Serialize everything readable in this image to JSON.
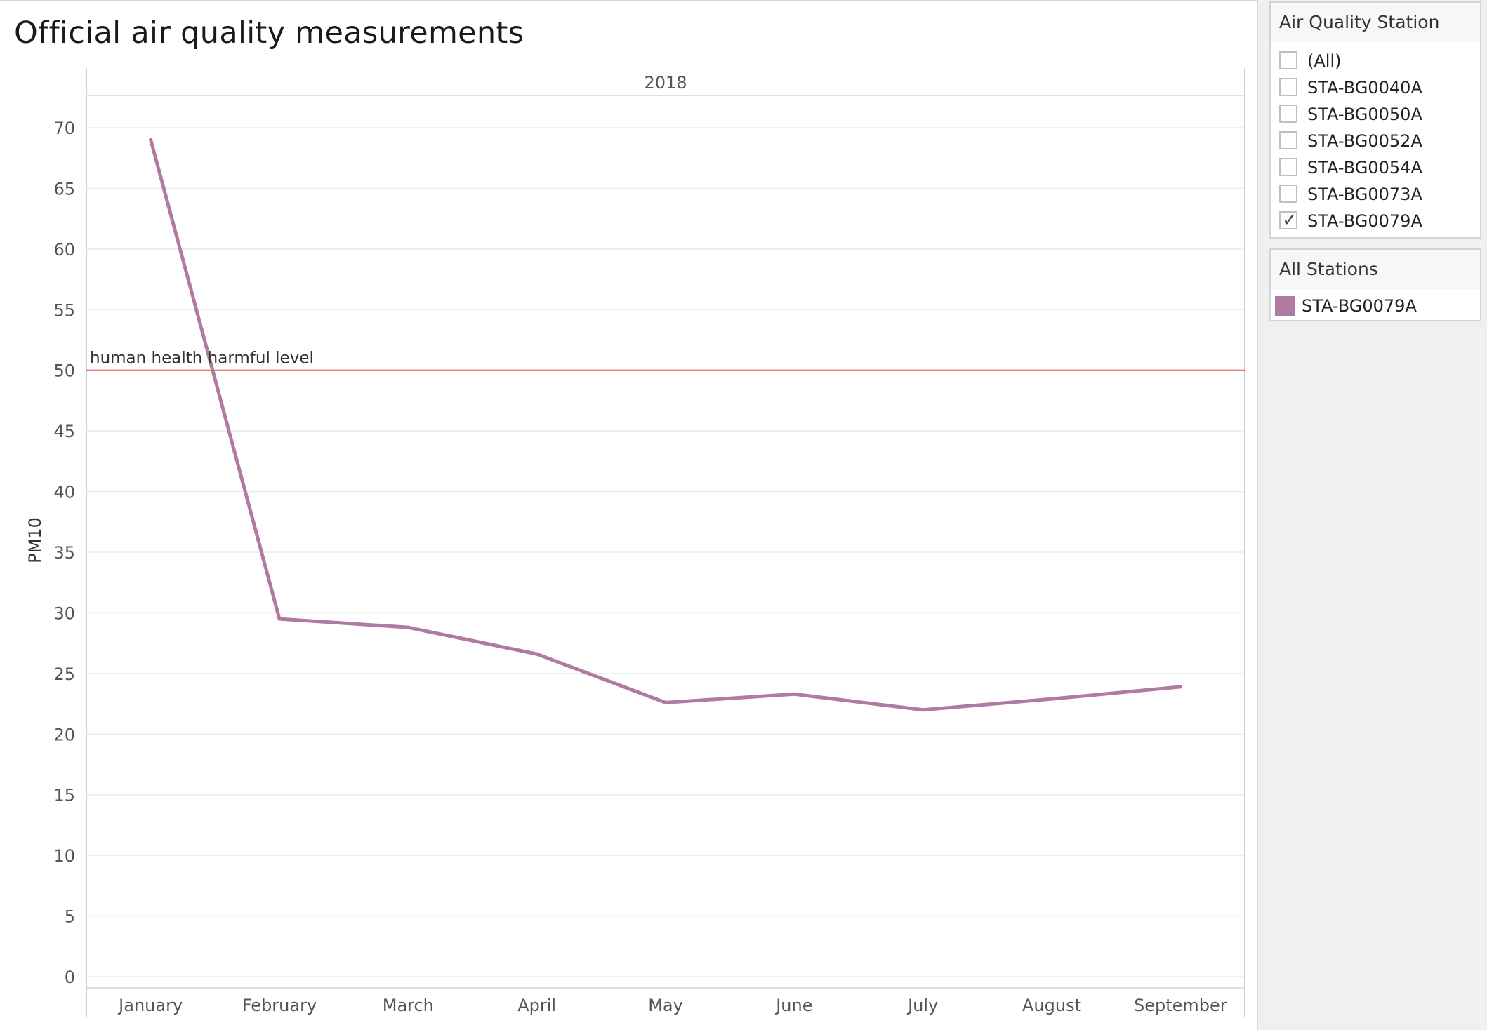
{
  "dashboard": {
    "title": "Official air quality measurements"
  },
  "chart_data": {
    "type": "line",
    "title": "Official air quality measurements",
    "column_header": "2018",
    "ylabel": "PM10",
    "xlabel": "",
    "ylim": [
      0,
      73
    ],
    "yticks": [
      0,
      5,
      10,
      15,
      20,
      25,
      30,
      35,
      40,
      45,
      50,
      55,
      60,
      65,
      70
    ],
    "categories": [
      "January",
      "February",
      "March",
      "April",
      "May",
      "June",
      "July",
      "August",
      "September"
    ],
    "series": [
      {
        "name": "STA-BG0079A",
        "color": "#b07aa1",
        "values": [
          69.0,
          29.5,
          28.8,
          26.6,
          22.6,
          23.3,
          22.0,
          22.9,
          23.9
        ]
      }
    ],
    "reference_line": {
      "value": 50,
      "label": "human health harmful level",
      "color": "#d94d4d"
    },
    "grid": true,
    "legend_position": "right"
  },
  "filter": {
    "title": "Air Quality Station",
    "items": [
      {
        "label": "(All)",
        "checked": false
      },
      {
        "label": "STA-BG0040A",
        "checked": false
      },
      {
        "label": "STA-BG0050A",
        "checked": false
      },
      {
        "label": "STA-BG0052A",
        "checked": false
      },
      {
        "label": "STA-BG0054A",
        "checked": false
      },
      {
        "label": "STA-BG0073A",
        "checked": false
      },
      {
        "label": "STA-BG0079A",
        "checked": true
      }
    ]
  },
  "legend": {
    "title": "All Stations",
    "items": [
      {
        "label": "STA-BG0079A",
        "color": "#b07aa1"
      }
    ]
  }
}
